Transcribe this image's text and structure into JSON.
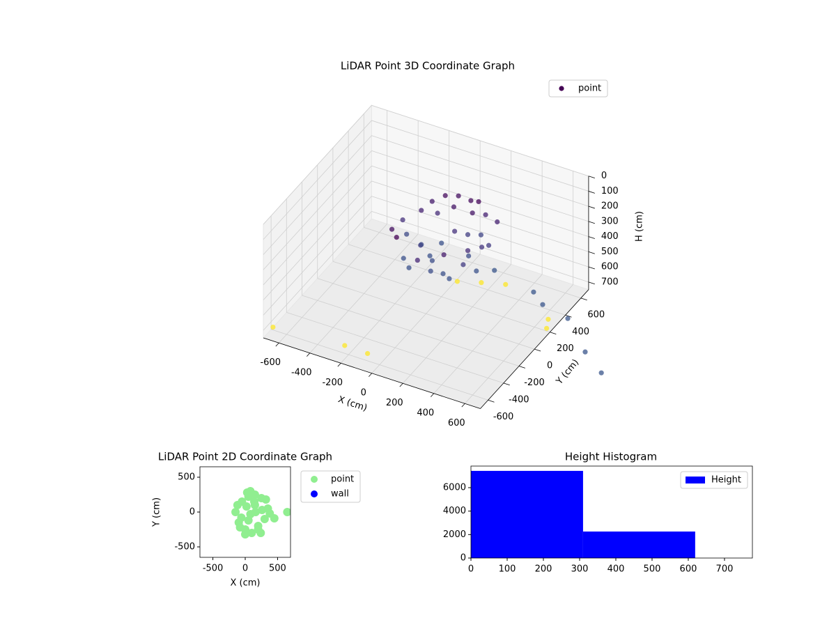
{
  "chart_data": [
    {
      "type": "scatter3d",
      "title": "LiDAR Point 3D Coordinate Graph",
      "xlabel": "X (cm)",
      "ylabel": "Y (cm)",
      "zlabel": "H (cm)",
      "xlim": [
        -700,
        700
      ],
      "ylim": [
        -700,
        700
      ],
      "zlim": [
        0,
        750
      ],
      "z_inverted": true,
      "xticks": [
        -600,
        -400,
        -200,
        0,
        200,
        400,
        600
      ],
      "yticks": [
        -600,
        -400,
        -200,
        0,
        200,
        400,
        600
      ],
      "zticks": [
        0,
        100,
        200,
        300,
        400,
        500,
        600,
        700
      ],
      "colormap": "viridis",
      "legend": "upper right",
      "grid": true,
      "series": [
        {
          "name": "point",
          "x": [
            -120,
            -80,
            -40,
            0,
            40,
            80,
            120,
            160,
            200,
            240,
            280,
            320,
            360,
            -100,
            -20,
            60,
            140,
            220,
            300,
            380,
            -60,
            20,
            100,
            180,
            260,
            340,
            0,
            100,
            200,
            300,
            50,
            150,
            250,
            -150,
            400,
            350,
            -680,
            -240,
            -90,
            30,
            155,
            284,
            654,
            687,
            480,
            773,
            875,
            1063,
            1301,
            1476
          ],
          "y": [
            -200,
            100,
            -300,
            250,
            -150,
            200,
            -350,
            50,
            280,
            -250,
            150,
            -100,
            0,
            -50,
            -250,
            300,
            -200,
            100,
            -300,
            50,
            200,
            -100,
            0,
            -300,
            250,
            -200,
            150,
            -150,
            200,
            -50,
            -320,
            280,
            -280,
            0,
            -150,
            220,
            -615,
            -570,
            -575,
            345,
            405,
            460,
            270,
            183,
            -77,
            -158,
            -245,
            -297,
            -549,
            -691
          ],
          "h": [
            120,
            150,
            90,
            110,
            200,
            130,
            160,
            180,
            100,
            140,
            220,
            170,
            190,
            230,
            250,
            120,
            240,
            210,
            250,
            200,
            140,
            230,
            250,
            240,
            150,
            200,
            170,
            250,
            130,
            240,
            250,
            110,
            245,
            180,
            250,
            150,
            720,
            720,
            720,
            720,
            720,
            720,
            720,
            720,
            260,
            260,
            260,
            260,
            260,
            260
          ]
        }
      ]
    },
    {
      "type": "scatter",
      "title": "LiDAR Point 2D Coordinate Graph",
      "xlabel": "X (cm)",
      "ylabel": "Y (cm)",
      "xlim": [
        -700,
        700
      ],
      "ylim": [
        -650,
        650
      ],
      "xticks": [
        -500,
        0,
        500
      ],
      "yticks": [
        -500,
        0,
        500
      ],
      "legend": "outside upper right",
      "series": [
        {
          "name": "point",
          "color": "#90ee90",
          "x": [
            -150,
            -100,
            -50,
            0,
            50,
            100,
            150,
            200,
            250,
            300,
            350,
            -120,
            -60,
            20,
            80,
            140,
            200,
            260,
            320,
            -80,
            0,
            80,
            160,
            240,
            50,
            150,
            30,
            380,
            450,
            650
          ],
          "y": [
            0,
            -150,
            150,
            -250,
            220,
            -300,
            250,
            -200,
            200,
            -100,
            50,
            100,
            -80,
            80,
            -30,
            150,
            -250,
            30,
            180,
            -220,
            -320,
            300,
            0,
            -300,
            -120,
            100,
            280,
            -20,
            -90,
            0
          ]
        },
        {
          "name": "wall",
          "color": "#0000ff",
          "x": [],
          "y": []
        }
      ]
    },
    {
      "type": "histogram",
      "title": "Height Histogram",
      "bins": [
        0,
        309.5,
        619
      ],
      "counts": [
        7430,
        2260
      ],
      "xlim": [
        0,
        777
      ],
      "ylim": [
        0,
        7840
      ],
      "xticks": [
        0,
        100,
        200,
        300,
        400,
        500,
        600,
        700
      ],
      "yticks": [
        0,
        2000,
        4000,
        6000
      ],
      "color": "#0000ff",
      "name": "Height",
      "legend": "upper right"
    }
  ]
}
